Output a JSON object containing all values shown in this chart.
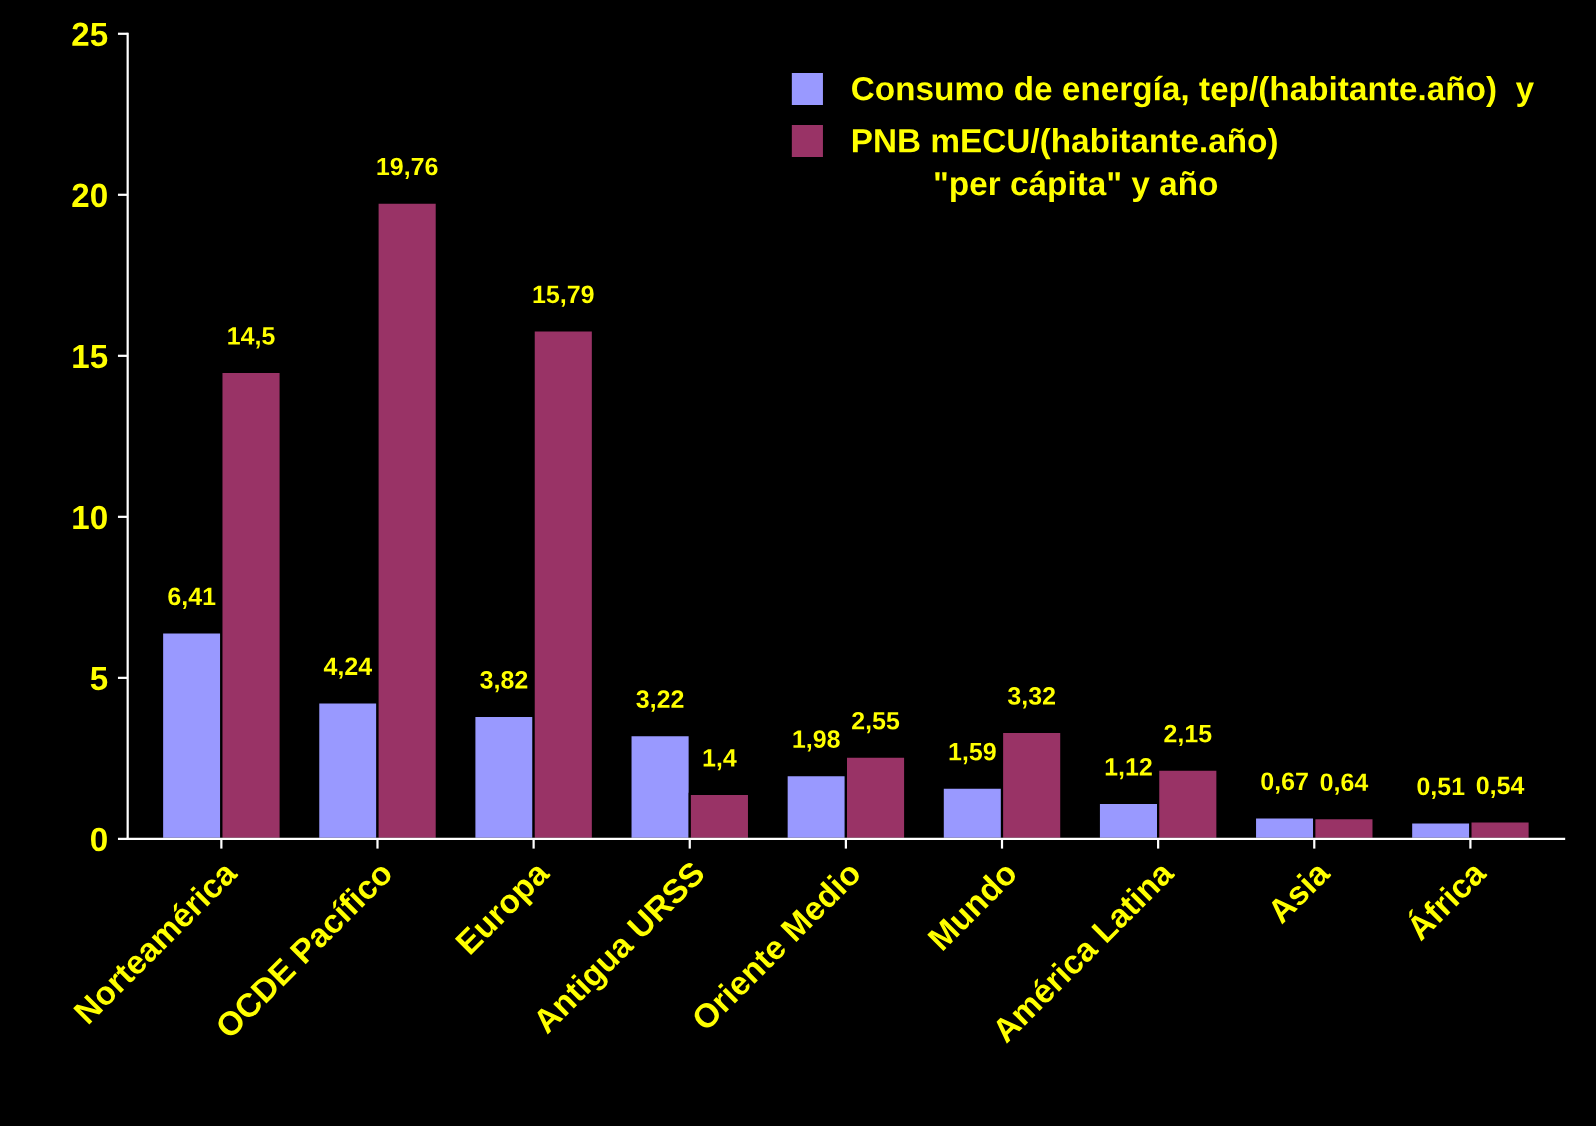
{
  "chart_data": {
    "type": "bar",
    "categories": [
      "Norteamérica",
      "OCDE Pacífico",
      "Europa",
      "Antigua URSS",
      "Oriente Medio",
      "Mundo",
      "América Latina",
      "Asia",
      "África"
    ],
    "series": [
      {
        "name": "Consumo de energía, tep/(habitante.año)  y",
        "color": "#9999ff",
        "values": [
          6.41,
          4.24,
          3.82,
          3.22,
          1.98,
          1.59,
          1.12,
          0.67,
          0.51
        ],
        "value_labels": [
          "6,41",
          "4,24",
          "3,82",
          "3,22",
          "1,98",
          "1,59",
          "1,12",
          "0,67",
          "0,51"
        ]
      },
      {
        "name": "PNB mECU/(habitante.año)",
        "color": "#993366",
        "values": [
          14.5,
          19.76,
          15.79,
          1.4,
          2.55,
          3.32,
          2.15,
          0.64,
          0.54
        ],
        "value_labels": [
          "14,5",
          "19,76",
          "15,79",
          "1,4",
          "2,55",
          "3,32",
          "2,15",
          "0,64",
          "0,54"
        ]
      }
    ],
    "annotations": [
      "\"per cápita\" y año"
    ],
    "ylim": [
      0,
      25
    ],
    "yticks": [
      0,
      5,
      10,
      15,
      20,
      25
    ],
    "grid": false,
    "legend": "top right"
  }
}
